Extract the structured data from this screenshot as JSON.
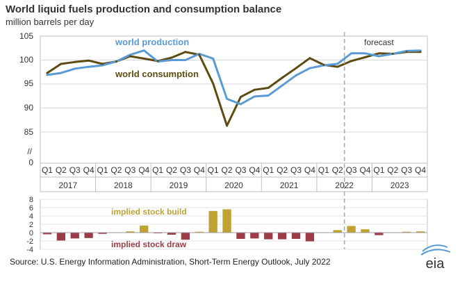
{
  "chart_data": [
    {
      "type": "line",
      "title": "World liquid fuels production and consumption balance",
      "subtitle": "million barrels per day",
      "categories": [
        "Q1",
        "Q2",
        "Q3",
        "Q4",
        "Q1",
        "Q2",
        "Q3",
        "Q4",
        "Q1",
        "Q2",
        "Q3",
        "Q4",
        "Q1",
        "Q2",
        "Q3",
        "Q4",
        "Q1",
        "Q2",
        "Q3",
        "Q4",
        "Q1",
        "Q2",
        "Q3",
        "Q4",
        "Q1",
        "Q2",
        "Q3",
        "Q4"
      ],
      "years": [
        "2017",
        "2018",
        "2019",
        "2020",
        "2021",
        "2022",
        "2023"
      ],
      "ylim": [
        85,
        105
      ],
      "y_ticks": [
        "105",
        "100",
        "95",
        "90",
        "85"
      ],
      "y_zero_label": "0",
      "axis_break_label": "//",
      "forecast_label": "forecast",
      "forecast_start_index": 22,
      "series": [
        {
          "name": "world production",
          "color": "#5b9bd5",
          "values": [
            96.9,
            97.3,
            98.2,
            98.6,
            98.9,
            99.7,
            101.1,
            102.0,
            99.7,
            100.0,
            100.0,
            101.3,
            100.3,
            91.9,
            90.8,
            92.4,
            92.6,
            94.7,
            96.8,
            98.3,
            98.9,
            99.2,
            101.4,
            101.4,
            100.8,
            101.3,
            101.9,
            102.0
          ]
        },
        {
          "name": "world consumption",
          "color": "#5e4b12",
          "values": [
            97.3,
            99.2,
            99.6,
            99.9,
            99.2,
            99.7,
            100.8,
            100.3,
            99.8,
            100.5,
            101.7,
            101.1,
            95.1,
            86.3,
            92.3,
            93.8,
            94.2,
            96.3,
            98.3,
            100.4,
            99.0,
            98.6,
            99.8,
            100.6,
            101.4,
            101.3,
            101.7,
            101.7
          ]
        }
      ]
    },
    {
      "type": "bar",
      "categories": [
        "Q1",
        "Q2",
        "Q3",
        "Q4",
        "Q1",
        "Q2",
        "Q3",
        "Q4",
        "Q1",
        "Q2",
        "Q3",
        "Q4",
        "Q1",
        "Q2",
        "Q3",
        "Q4",
        "Q1",
        "Q2",
        "Q3",
        "Q4",
        "Q1",
        "Q2",
        "Q3",
        "Q4",
        "Q1",
        "Q2",
        "Q3",
        "Q4"
      ],
      "ylim": [
        -4,
        8
      ],
      "y_ticks": [
        "8",
        "6",
        "4",
        "2",
        "0",
        "-2",
        "-4"
      ],
      "build_label": "implied stock  build",
      "draw_label": "implied stock draw",
      "build_color": "#bfa233",
      "draw_color": "#9b3c48",
      "values": [
        -0.4,
        -1.9,
        -1.4,
        -1.3,
        -0.3,
        0.0,
        0.3,
        1.7,
        -0.1,
        -0.5,
        -1.7,
        0.2,
        5.2,
        5.6,
        -1.5,
        -1.4,
        -1.6,
        -1.6,
        -1.5,
        -2.1,
        0.0,
        0.6,
        1.6,
        0.8,
        -0.6,
        0.0,
        0.2,
        0.3
      ]
    }
  ],
  "footer": {
    "source": "Source: U.S. Energy Information Administration, Short-Term Energy Outlook, July 2022",
    "logo": "eia"
  }
}
